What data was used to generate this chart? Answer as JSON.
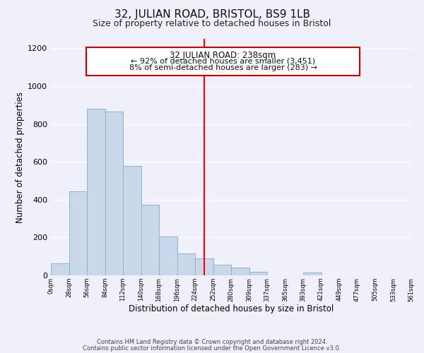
{
  "title": "32, JULIAN ROAD, BRISTOL, BS9 1LB",
  "subtitle": "Size of property relative to detached houses in Bristol",
  "xlabel": "Distribution of detached houses by size in Bristol",
  "ylabel": "Number of detached properties",
  "bar_color": "#c8d8ea",
  "bar_edge_color": "#8ab4cc",
  "background_color": "#f0f0fa",
  "grid_color": "#ffffff",
  "bin_labels": [
    "0sqm",
    "28sqm",
    "56sqm",
    "84sqm",
    "112sqm",
    "140sqm",
    "168sqm",
    "196sqm",
    "224sqm",
    "252sqm",
    "280sqm",
    "309sqm",
    "337sqm",
    "365sqm",
    "393sqm",
    "421sqm",
    "449sqm",
    "477sqm",
    "505sqm",
    "533sqm",
    "561sqm"
  ],
  "bar_heights": [
    65,
    445,
    880,
    865,
    580,
    375,
    205,
    115,
    90,
    55,
    42,
    18,
    0,
    0,
    15,
    0,
    0,
    0,
    0,
    0
  ],
  "ylim": [
    0,
    1250
  ],
  "yticks": [
    0,
    200,
    400,
    600,
    800,
    1000,
    1200
  ],
  "annotation_title": "32 JULIAN ROAD: 238sqm",
  "annotation_line1": "← 92% of detached houses are smaller (3,451)",
  "annotation_line2": "8% of semi-detached houses are larger (283) →",
  "vline_x": 238,
  "bin_width": 28,
  "footnote1": "Contains HM Land Registry data © Crown copyright and database right 2024.",
  "footnote2": "Contains public sector information licensed under the Open Government Licence v3.0."
}
